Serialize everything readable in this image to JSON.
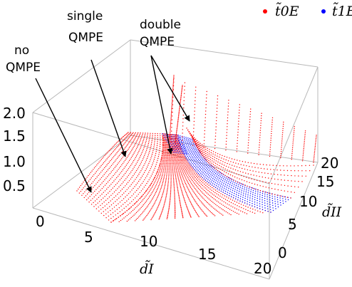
{
  "chart_data": {
    "type": "scatter",
    "dimensions": 3,
    "x_axis": {
      "label": "d̃I",
      "range": [
        0,
        20
      ],
      "ticks": [
        "0",
        "5",
        "10",
        "15",
        "20"
      ]
    },
    "y_axis": {
      "label": "d̃II",
      "range": [
        0,
        20
      ],
      "ticks": [
        "0",
        "5",
        "10",
        "15",
        "20"
      ]
    },
    "z_axis": {
      "label": "",
      "range": [
        0,
        2.0
      ],
      "ticks": [
        "0.5",
        "1.0",
        "1.5",
        "2.0"
      ]
    },
    "series": [
      {
        "name": "t̃0E",
        "color": "#ff0000",
        "surface": "red"
      },
      {
        "name": "t̃1E",
        "color": "#0000ff",
        "surface": "blue"
      }
    ],
    "legend": {
      "position": "top-right"
    },
    "annotations": [
      {
        "lines": [
          "no",
          "QMPE"
        ]
      },
      {
        "lines": [
          "single",
          "QMPE"
        ]
      },
      {
        "lines": [
          "double",
          "QMPE"
        ]
      }
    ]
  }
}
